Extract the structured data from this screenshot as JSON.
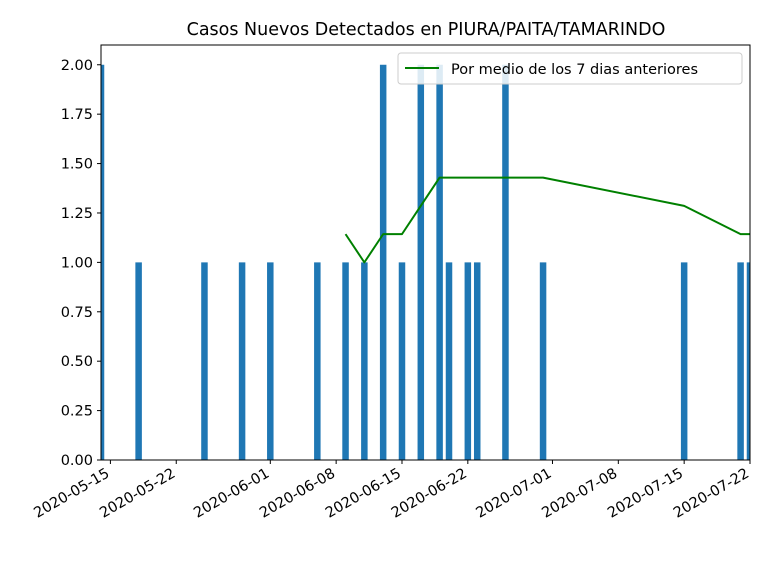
{
  "chart_data": {
    "type": "bar",
    "title": "Casos Nuevos Detectados en PIURA/PAITA/TAMARINDO",
    "xlabel": "",
    "ylabel": "",
    "ylim": [
      0,
      2.1
    ],
    "xlim": [
      "2020-05-14",
      "2020-07-22"
    ],
    "x_ticks": [
      "2020-05-15",
      "2020-05-22",
      "2020-06-01",
      "2020-06-08",
      "2020-06-15",
      "2020-06-22",
      "2020-07-01",
      "2020-07-08",
      "2020-07-15",
      "2020-07-22"
    ],
    "y_ticks": [
      "0.00",
      "0.25",
      "0.50",
      "0.75",
      "1.00",
      "1.25",
      "1.50",
      "1.75",
      "2.00"
    ],
    "y_tick_values": [
      0,
      0.25,
      0.5,
      0.75,
      1.0,
      1.25,
      1.5,
      1.75,
      2.0
    ],
    "grid": false,
    "legend_position": "top-right",
    "bar_color": "#1f77b4",
    "line_color": "#008000",
    "bars": [
      {
        "date": "2020-05-14",
        "value": 2
      },
      {
        "date": "2020-05-18",
        "value": 1
      },
      {
        "date": "2020-05-25",
        "value": 1
      },
      {
        "date": "2020-05-29",
        "value": 1
      },
      {
        "date": "2020-06-01",
        "value": 1
      },
      {
        "date": "2020-06-06",
        "value": 1
      },
      {
        "date": "2020-06-09",
        "value": 1
      },
      {
        "date": "2020-06-11",
        "value": 1
      },
      {
        "date": "2020-06-13",
        "value": 2
      },
      {
        "date": "2020-06-15",
        "value": 1
      },
      {
        "date": "2020-06-17",
        "value": 2
      },
      {
        "date": "2020-06-19",
        "value": 2
      },
      {
        "date": "2020-06-20",
        "value": 1
      },
      {
        "date": "2020-06-22",
        "value": 1
      },
      {
        "date": "2020-06-23",
        "value": 1
      },
      {
        "date": "2020-06-26",
        "value": 2
      },
      {
        "date": "2020-06-30",
        "value": 1
      },
      {
        "date": "2020-07-15",
        "value": 1
      },
      {
        "date": "2020-07-21",
        "value": 1
      },
      {
        "date": "2020-07-22",
        "value": 1
      }
    ],
    "series": [
      {
        "name": "Por medio de los 7 dias anteriores",
        "points": [
          {
            "date": "2020-06-09",
            "value": 1.143
          },
          {
            "date": "2020-06-11",
            "value": 1.0
          },
          {
            "date": "2020-06-13",
            "value": 1.143
          },
          {
            "date": "2020-06-15",
            "value": 1.143
          },
          {
            "date": "2020-06-17",
            "value": 1.286
          },
          {
            "date": "2020-06-19",
            "value": 1.429
          },
          {
            "date": "2020-06-26",
            "value": 1.429
          },
          {
            "date": "2020-06-30",
            "value": 1.429
          },
          {
            "date": "2020-07-15",
            "value": 1.286
          },
          {
            "date": "2020-07-21",
            "value": 1.143
          },
          {
            "date": "2020-07-22",
            "value": 1.143
          }
        ]
      }
    ]
  }
}
